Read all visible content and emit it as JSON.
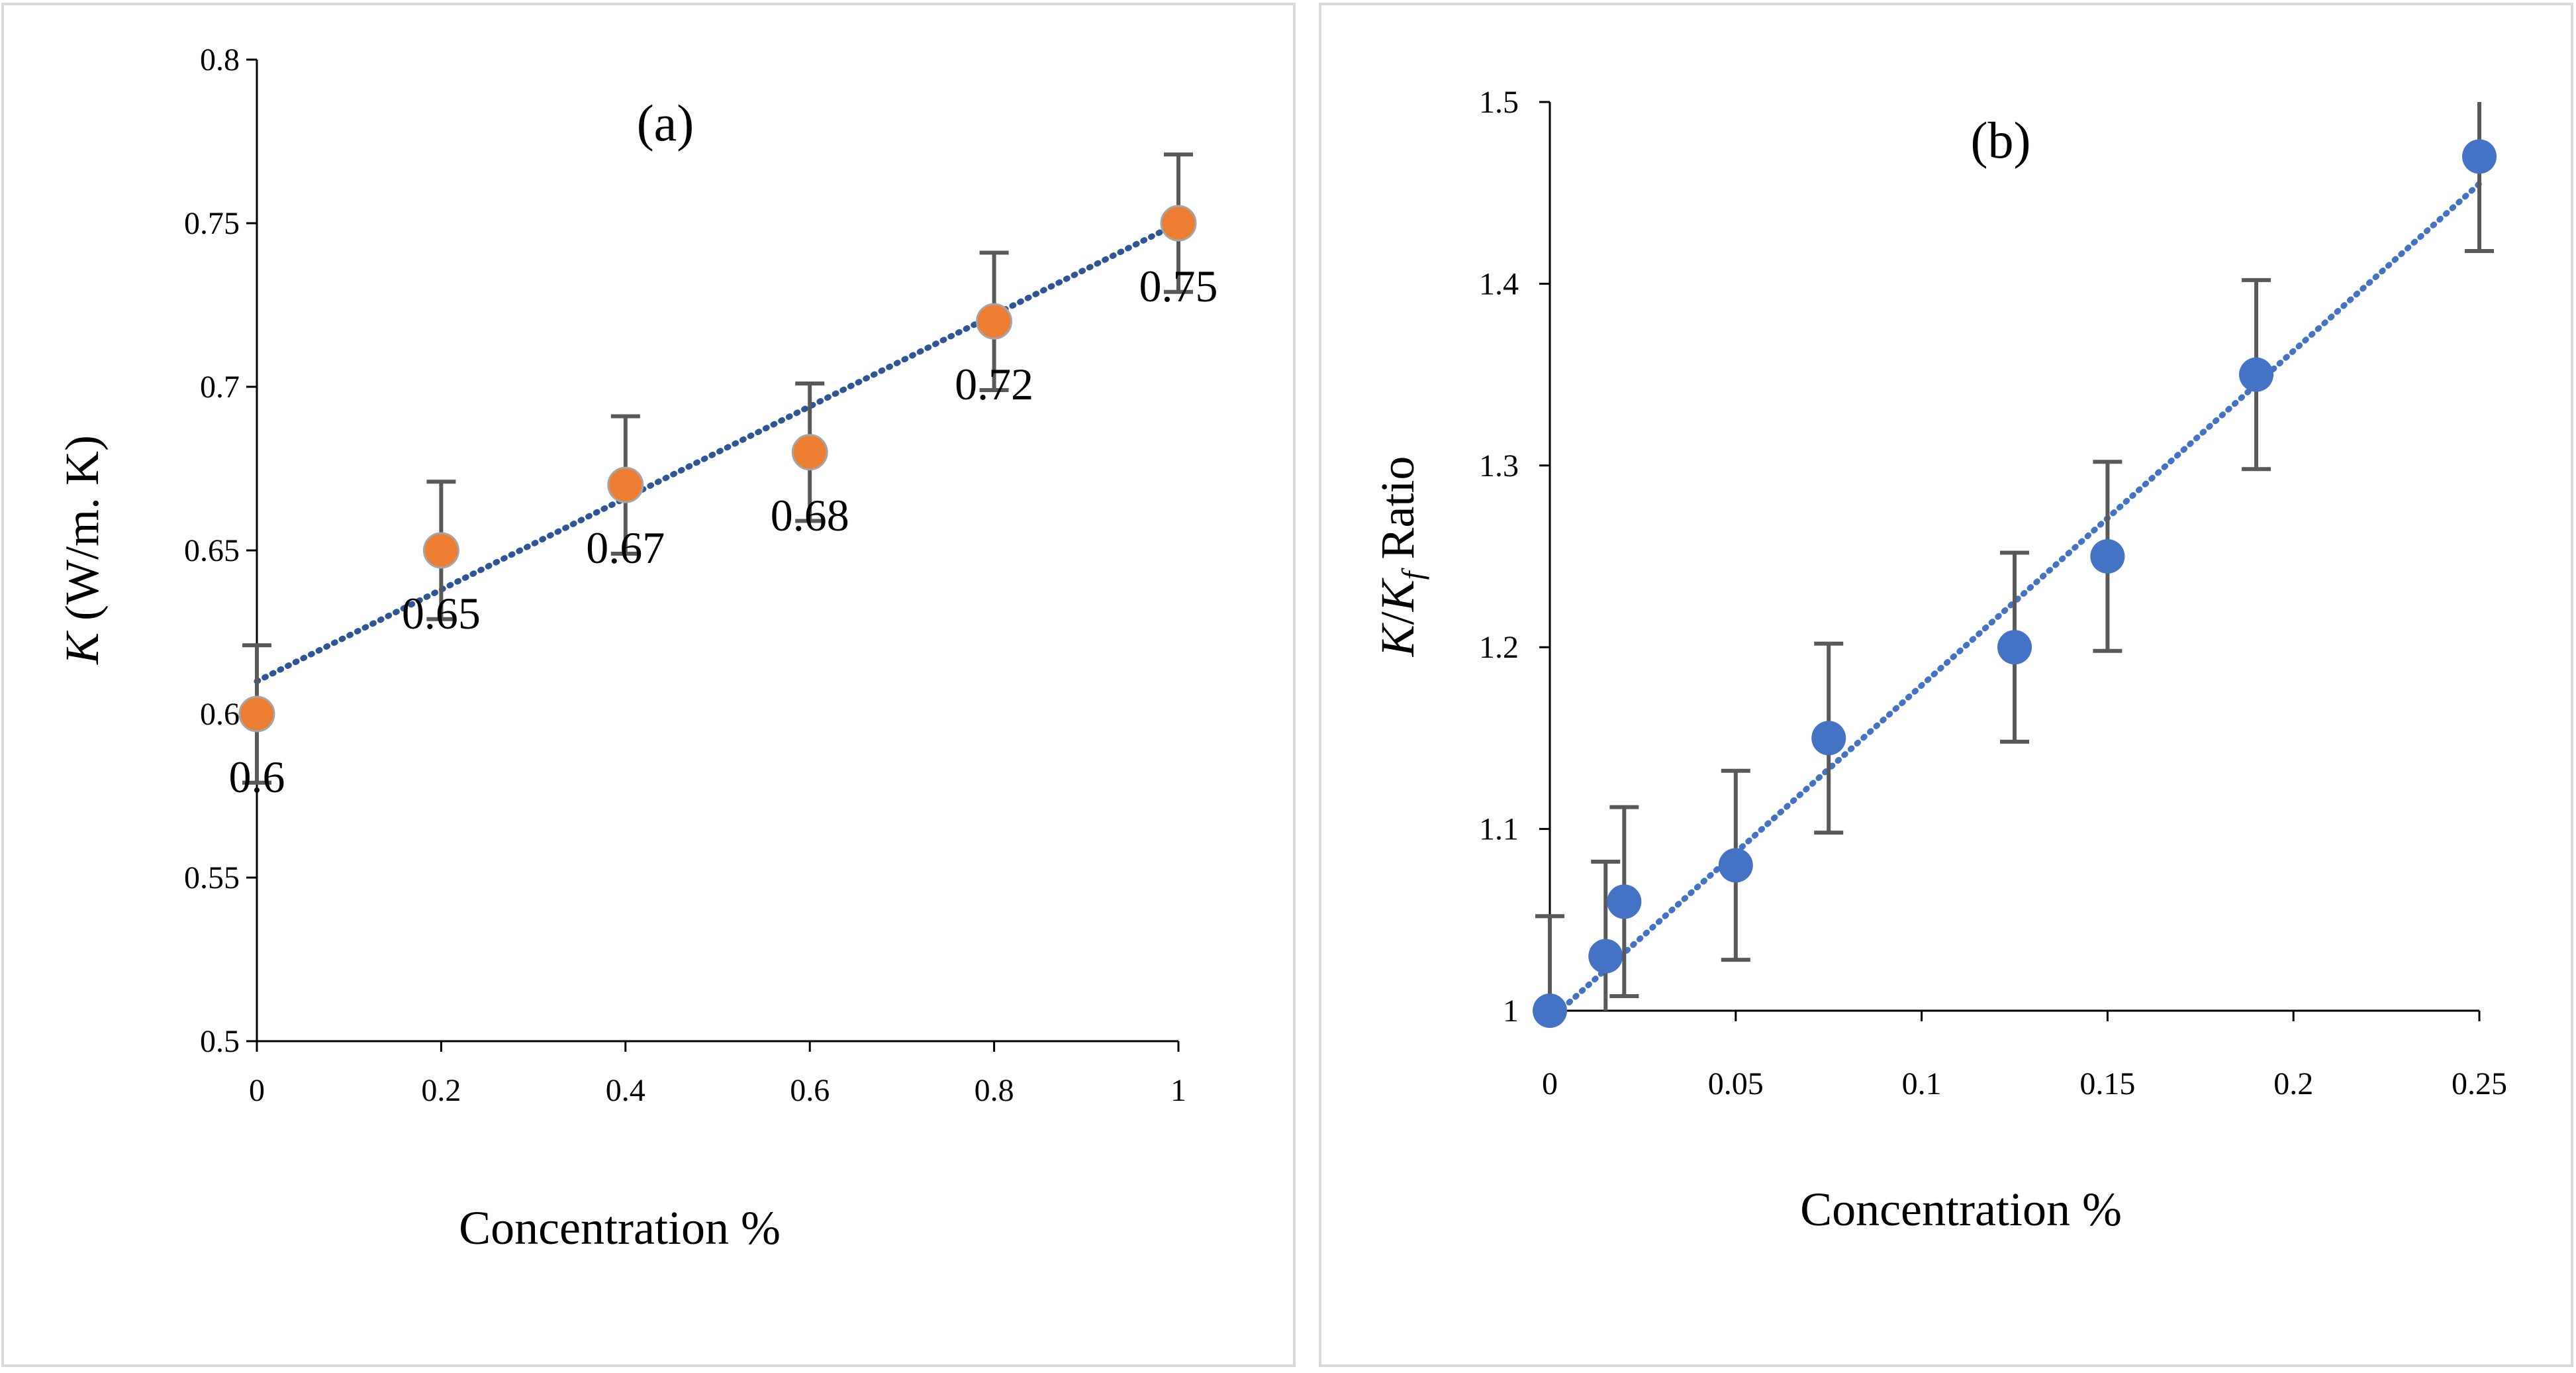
{
  "chart_data": [
    {
      "type": "scatter",
      "panel_label": "(a)",
      "xlabel": "Concentration %",
      "ylabel_italic": "K",
      "ylabel_rest": " (W/m. K)",
      "xlim": [
        0,
        1
      ],
      "ylim": [
        0.5,
        0.8
      ],
      "x_ticks": [
        0,
        0.2,
        0.4,
        0.6,
        0.8,
        1
      ],
      "x_tick_labels": [
        "0",
        "0.2",
        "0.4",
        "0.6",
        "0.8",
        "1"
      ],
      "y_ticks": [
        0.5,
        0.55,
        0.6,
        0.65,
        0.7,
        0.75,
        0.8
      ],
      "y_tick_labels": [
        "0.5",
        "0.55",
        "0.6",
        "0.65",
        "0.7",
        "0.75",
        "0.8"
      ],
      "series": [
        {
          "name": "K",
          "x": [
            0,
            0.2,
            0.4,
            0.6,
            0.8,
            1
          ],
          "y": [
            0.6,
            0.65,
            0.67,
            0.68,
            0.72,
            0.75
          ],
          "error": [
            0.021,
            0.021,
            0.021,
            0.021,
            0.021,
            0.021
          ],
          "data_labels": [
            "0.6",
            "0.65",
            "0.67",
            "0.68",
            "0.72",
            "0.75"
          ],
          "marker_color": "#ED7D31",
          "marker_edge": "#A5A5A5"
        }
      ],
      "trendline": {
        "type": "linear",
        "x": [
          0,
          1
        ],
        "y": [
          0.61,
          0.75
        ],
        "color": "#2F5597"
      },
      "grid": false
    },
    {
      "type": "scatter",
      "panel_label": "(b)",
      "xlabel": "Concentration %",
      "ylabel_parts": [
        "K",
        "/",
        "K",
        "f",
        " Ratio"
      ],
      "xlim": [
        0,
        0.25
      ],
      "ylim": [
        1,
        1.5
      ],
      "x_ticks": [
        0,
        0.05,
        0.1,
        0.15,
        0.2,
        0.25
      ],
      "x_tick_labels": [
        "0",
        "0.05",
        "0.1",
        "0.15",
        "0.2",
        "0.25"
      ],
      "y_ticks": [
        1,
        1.1,
        1.2,
        1.3,
        1.4,
        1.5
      ],
      "y_tick_labels": [
        "1",
        "1.1",
        "1.2",
        "1.3",
        "1.4",
        "1.5"
      ],
      "series": [
        {
          "name": "K/Kf Ratio",
          "x": [
            0,
            0.015,
            0.02,
            0.05,
            0.075,
            0.125,
            0.15,
            0.19,
            0.25
          ],
          "y": [
            1,
            1.03,
            1.06,
            1.08,
            1.15,
            1.2,
            1.25,
            1.35,
            1.47
          ],
          "error": [
            0.052,
            0.052,
            0.052,
            0.052,
            0.052,
            0.052,
            0.052,
            0.052,
            0.052
          ],
          "marker_color": "#4472C4"
        }
      ],
      "trendline": {
        "type": "linear",
        "x": [
          0,
          0.25
        ],
        "y": [
          0.995,
          1.455
        ],
        "color": "#4472C4"
      },
      "grid": false
    }
  ]
}
